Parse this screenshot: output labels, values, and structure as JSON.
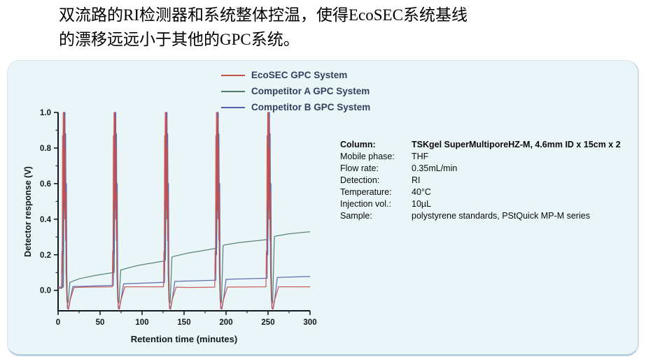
{
  "header": {
    "line1": "双流路的RI检测器和系统整体控温，使得EcoSEC系统基线",
    "line2": "的漂移远远小于其他的GPC系统。"
  },
  "panel": {
    "background": "#e9f5f7",
    "edge_color": "#b7cfdf"
  },
  "chart_data": {
    "type": "line",
    "title": "",
    "xlabel": "Retention time (minutes)",
    "ylabel": "Detector response (V)",
    "xlim": [
      0,
      300
    ],
    "ylim": [
      -0.115,
      1.0
    ],
    "x_ticks": [
      0,
      50,
      100,
      150,
      200,
      250,
      300
    ],
    "x_minor_step": 25,
    "y_ticks": [
      0.0,
      0.2,
      0.4,
      0.6,
      0.8,
      1.0
    ],
    "y_minor_step": 0.1,
    "grid": false,
    "legend_position": "top-center",
    "axis_color": "#14181f",
    "injection_times": [
      9.5,
      70,
      131,
      192,
      253
    ],
    "peak_max": 1.0,
    "series": [
      {
        "name": "EcoSEC GPC System",
        "color": "#c5504e",
        "baseline_drift": [
          [
            0,
            0.013
          ],
          [
            30,
            0.018
          ],
          [
            66,
            0.02
          ],
          [
            126,
            0.02
          ],
          [
            155,
            0.016
          ],
          [
            187,
            0.018
          ],
          [
            248,
            0.02
          ],
          [
            300,
            0.02
          ]
        ],
        "spike_profile": [
          [
            -5.5,
            null
          ],
          [
            -5.0,
            0.22
          ],
          [
            -4.6,
            0.1
          ],
          [
            -4.2,
            0.87
          ],
          [
            -3.8,
            0.32
          ],
          [
            -3.4,
            1.0
          ],
          [
            -3.0,
            0.45
          ],
          [
            -2.6,
            1.0
          ],
          [
            -2.2,
            0.5
          ],
          [
            -1.8,
            0.97
          ],
          [
            -1.4,
            0.4
          ],
          [
            -1.0,
            0.8
          ],
          [
            -0.6,
            0.28
          ],
          [
            -0.2,
            0.55
          ],
          [
            0.3,
            0.12
          ],
          [
            0.9,
            0.03
          ],
          [
            1.6,
            -0.1
          ],
          [
            2.6,
            -0.105
          ],
          [
            4.5,
            -0.06
          ],
          [
            7.0,
            -0.02
          ],
          [
            9.5,
            null
          ]
        ]
      },
      {
        "name": "Competitor A GPC System",
        "color": "#4d7a6d",
        "baseline_drift": [
          [
            0,
            0.012
          ],
          [
            4,
            0.012
          ],
          [
            14,
            0.045
          ],
          [
            25,
            0.065
          ],
          [
            45,
            0.085
          ],
          [
            66,
            0.1
          ],
          [
            75,
            0.115
          ],
          [
            95,
            0.14
          ],
          [
            126,
            0.165
          ],
          [
            137,
            0.19
          ],
          [
            155,
            0.21
          ],
          [
            187,
            0.235
          ],
          [
            198,
            0.255
          ],
          [
            215,
            0.268
          ],
          [
            248,
            0.285
          ],
          [
            259,
            0.305
          ],
          [
            275,
            0.318
          ],
          [
            300,
            0.33
          ]
        ],
        "spike_profile": [
          [
            -3.2,
            null
          ],
          [
            -2.7,
            0.45
          ],
          [
            -2.3,
            0.95
          ],
          [
            -1.9,
            0.5
          ],
          [
            -1.5,
            1.0
          ],
          [
            -1.1,
            0.4
          ],
          [
            -0.6,
            0.72
          ],
          [
            0.0,
            0.1
          ],
          [
            1.0,
            -0.06
          ],
          [
            2.5,
            -0.07
          ],
          [
            4.5,
            null
          ]
        ]
      },
      {
        "name": "Competitor B GPC System",
        "color": "#5262ae",
        "baseline_drift": [
          [
            0,
            0.018
          ],
          [
            66,
            0.028
          ],
          [
            76,
            0.036
          ],
          [
            126,
            0.045
          ],
          [
            137,
            0.05
          ],
          [
            187,
            0.057
          ],
          [
            198,
            0.062
          ],
          [
            248,
            0.068
          ],
          [
            259,
            0.072
          ],
          [
            300,
            0.078
          ]
        ],
        "spike_profile": [
          [
            -4.2,
            null
          ],
          [
            -3.7,
            0.5
          ],
          [
            -3.3,
            0.2
          ],
          [
            -2.9,
            0.92
          ],
          [
            -2.5,
            0.45
          ],
          [
            -2.1,
            1.0
          ],
          [
            -1.7,
            0.5
          ],
          [
            -1.3,
            1.0
          ],
          [
            -0.9,
            0.45
          ],
          [
            -0.5,
            0.88
          ],
          [
            -0.1,
            0.35
          ],
          [
            0.4,
            0.6
          ],
          [
            0.9,
            0.1
          ],
          [
            1.7,
            -0.1
          ],
          [
            3.0,
            -0.105
          ],
          [
            5.0,
            -0.05
          ],
          [
            8.0,
            null
          ]
        ]
      }
    ]
  },
  "conditions": {
    "rows": [
      {
        "label": "Column:",
        "value": "TSKgel SuperMultiporeHZ-M, 4.6mm ID x 15cm x 2"
      },
      {
        "label": "Mobile phase:",
        "value": "THF"
      },
      {
        "label": "Flow rate:",
        "value": "0.35mL/min"
      },
      {
        "label": "Detection:",
        "value": "RI"
      },
      {
        "label": "Temperature:",
        "value": "40°C"
      },
      {
        "label": "Injection vol.:",
        "value": "10µL"
      },
      {
        "label": "Sample:",
        "value": "polystyrene standards, PStQuick MP-M series"
      }
    ]
  }
}
